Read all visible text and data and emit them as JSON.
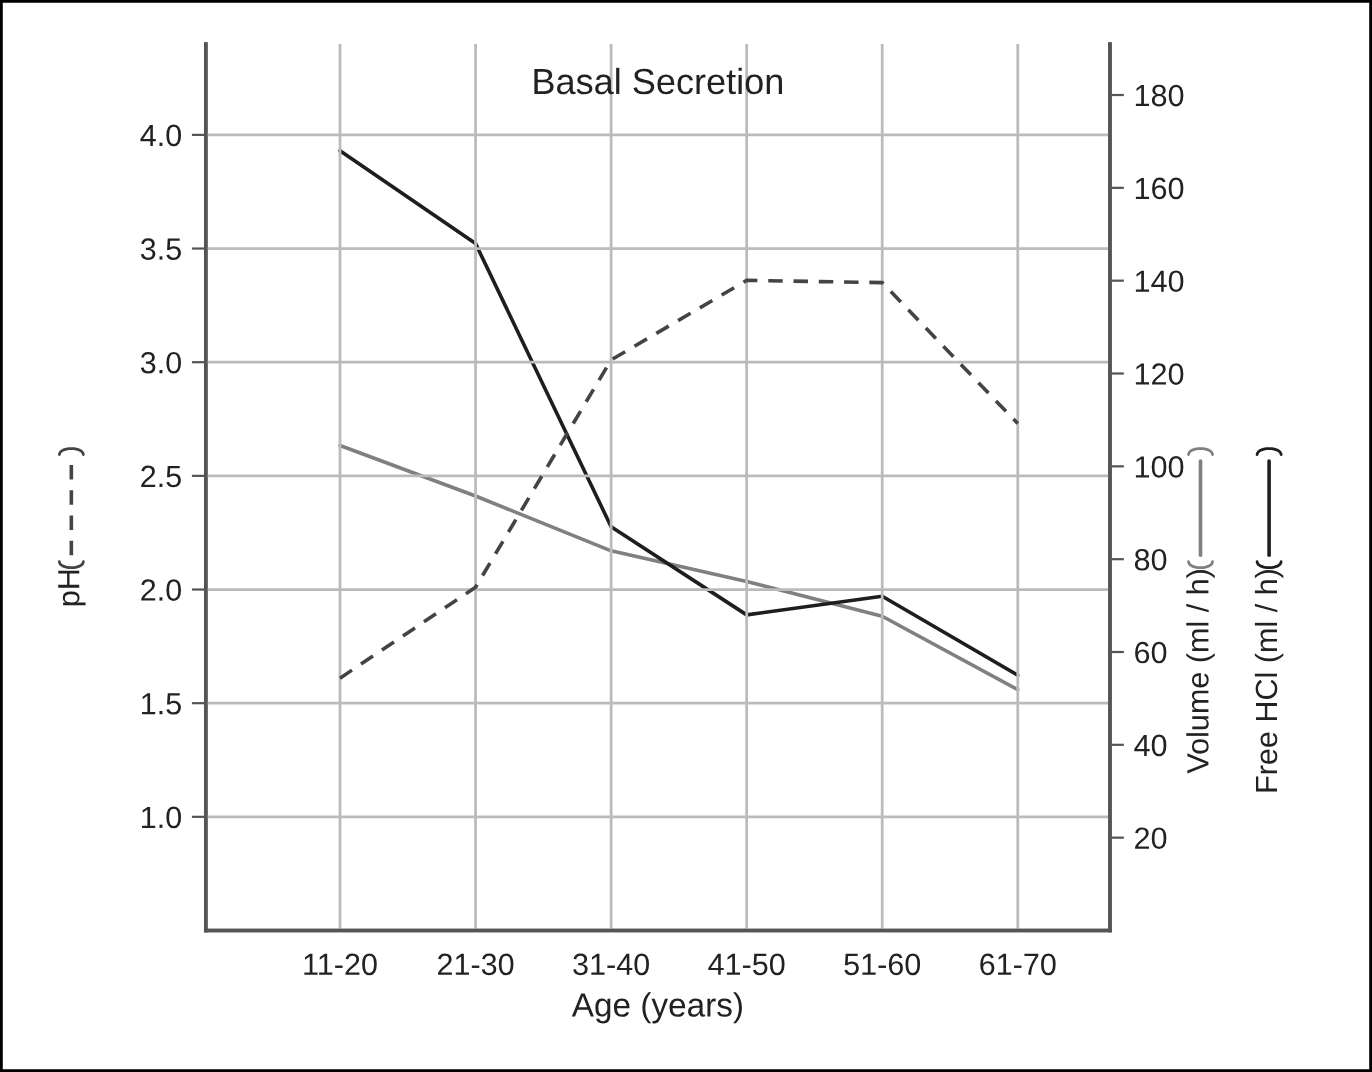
{
  "chart_data": {
    "type": "line",
    "title": "Basal Secretion",
    "xlabel": "Age (years)",
    "categories": [
      "11-20",
      "21-30",
      "31-40",
      "41-50",
      "51-60",
      "61-70"
    ],
    "series": [
      {
        "name": "pH",
        "color": "#444444",
        "line_style": "dashed",
        "axis": "y",
        "values": [
          1.61,
          2.01,
          3.01,
          3.36,
          3.35,
          2.73
        ]
      },
      {
        "name": "Volume (ml / h)",
        "color": "#808080",
        "line_style": "solid",
        "axis": "y2",
        "values": [
          104.5,
          93.6,
          81.8,
          75.2,
          67.7,
          51.9
        ]
      },
      {
        "name": "Free HCl (ml / h)",
        "color": "#1e1e1e",
        "line_style": "solid",
        "axis": "y2",
        "values": [
          168,
          148,
          87,
          68,
          72,
          55
        ]
      }
    ],
    "ylim": [
      0.5,
      4.4
    ],
    "yticks": [
      {
        "value": 1.0,
        "label": "1.0"
      },
      {
        "value": 1.5,
        "label": "1.5"
      },
      {
        "value": 2.0,
        "label": "2.0"
      },
      {
        "value": 2.5,
        "label": "2.5"
      },
      {
        "value": 3.0,
        "label": "3.0"
      },
      {
        "value": 3.5,
        "label": "3.5"
      },
      {
        "value": 4.0,
        "label": "4.0"
      }
    ],
    "y2lim": [
      0,
      191
    ],
    "y2ticks": [
      20,
      40,
      60,
      80,
      100,
      120,
      140,
      160,
      180
    ],
    "grid": true,
    "legend": "right",
    "marker": "none"
  }
}
